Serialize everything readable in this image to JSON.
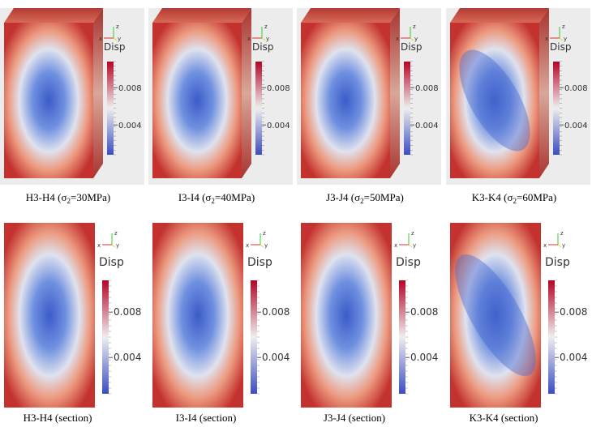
{
  "panels": [
    {
      "caption": {
        "text": "H3-H4 (σ",
        "sub": "2",
        "rest": "=30MPa)"
      },
      "legend": {
        "title": "Disp",
        "ticks": [
          "0.008",
          "0.004"
        ]
      },
      "axes": [
        "z",
        "x",
        "y"
      ]
    },
    {
      "caption": {
        "text": "I3-I4 (σ",
        "sub": "2",
        "rest": "=40MPa)"
      },
      "legend": {
        "title": "Disp",
        "ticks": [
          "0.008",
          "0.004"
        ]
      },
      "axes": [
        "z",
        "x",
        "y"
      ]
    },
    {
      "caption": {
        "text": "J3-J4 (σ",
        "sub": "2",
        "rest": "=50MPa)"
      },
      "legend": {
        "title": "Disp",
        "ticks": [
          "0.008",
          "0.004"
        ]
      },
      "axes": [
        "z",
        "x",
        "y"
      ]
    },
    {
      "caption": {
        "text": "K3-K4 (σ",
        "sub": "2",
        "rest": "=60MPa)"
      },
      "legend": {
        "title": "Disp",
        "ticks": [
          "0.008",
          "0.004"
        ]
      },
      "axes": [
        "z",
        "x",
        "y"
      ]
    },
    {
      "caption": {
        "text": "H3-H4 (section)"
      },
      "legend": {
        "title": "Disp",
        "ticks": [
          "0.008",
          "0.004"
        ]
      },
      "axes": [
        "z",
        "x",
        "y"
      ]
    },
    {
      "caption": {
        "text": "I3-I4 (section)"
      },
      "legend": {
        "title": "Disp",
        "ticks": [
          "0.008",
          "0.004"
        ]
      },
      "axes": [
        "z",
        "x",
        "y"
      ]
    },
    {
      "caption": {
        "text": "J3-J4 (section)"
      },
      "legend": {
        "title": "Disp",
        "ticks": [
          "0.008",
          "0.004"
        ]
      },
      "axes": [
        "z",
        "x",
        "y"
      ]
    },
    {
      "caption": {
        "text": "K3-K4 (section)"
      },
      "legend": {
        "title": "Disp",
        "ticks": [
          "0.008",
          "0.004"
        ]
      },
      "axes": [
        "z",
        "x",
        "y"
      ]
    }
  ]
}
